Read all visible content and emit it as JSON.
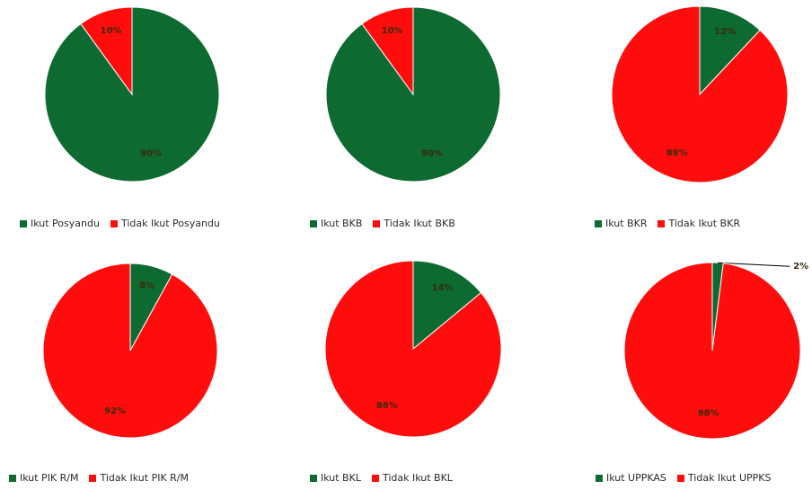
{
  "colors": {
    "ikut": "#0d6b32",
    "tidak": "#ff0d0d"
  },
  "chart_data": [
    {
      "type": "pie",
      "labels": [
        "Ikut Posyandu",
        "Tidak Ikut Posyandu"
      ],
      "values": [
        90,
        10
      ],
      "value_labels": [
        "90%",
        "10%"
      ],
      "legend_position": "bottom"
    },
    {
      "type": "pie",
      "labels": [
        "Ikut BKB",
        "Tidak Ikut BKB"
      ],
      "values": [
        90,
        10
      ],
      "value_labels": [
        "90%",
        "10%"
      ],
      "legend_position": "bottom"
    },
    {
      "type": "pie",
      "labels": [
        "Ikut BKR",
        "Tidak Ikut BKR"
      ],
      "values": [
        12,
        88
      ],
      "value_labels": [
        "12%",
        "88%"
      ],
      "legend_position": "bottom"
    },
    {
      "type": "pie",
      "labels": [
        "Ikut PIK R/M",
        "Tidak Ikut PIK R/M"
      ],
      "values": [
        8,
        92
      ],
      "value_labels": [
        "8%",
        "92%"
      ],
      "legend_position": "bottom"
    },
    {
      "type": "pie",
      "labels": [
        "Ikut BKL",
        "Tidak Ikut BKL"
      ],
      "values": [
        14,
        86
      ],
      "value_labels": [
        "14%",
        "86%"
      ],
      "legend_position": "bottom"
    },
    {
      "type": "pie",
      "labels": [
        "Ikut UPPKAS",
        "Tidak Ikut UPPKS"
      ],
      "values": [
        2,
        98
      ],
      "value_labels": [
        "2%",
        "98%"
      ],
      "legend_position": "bottom"
    }
  ]
}
